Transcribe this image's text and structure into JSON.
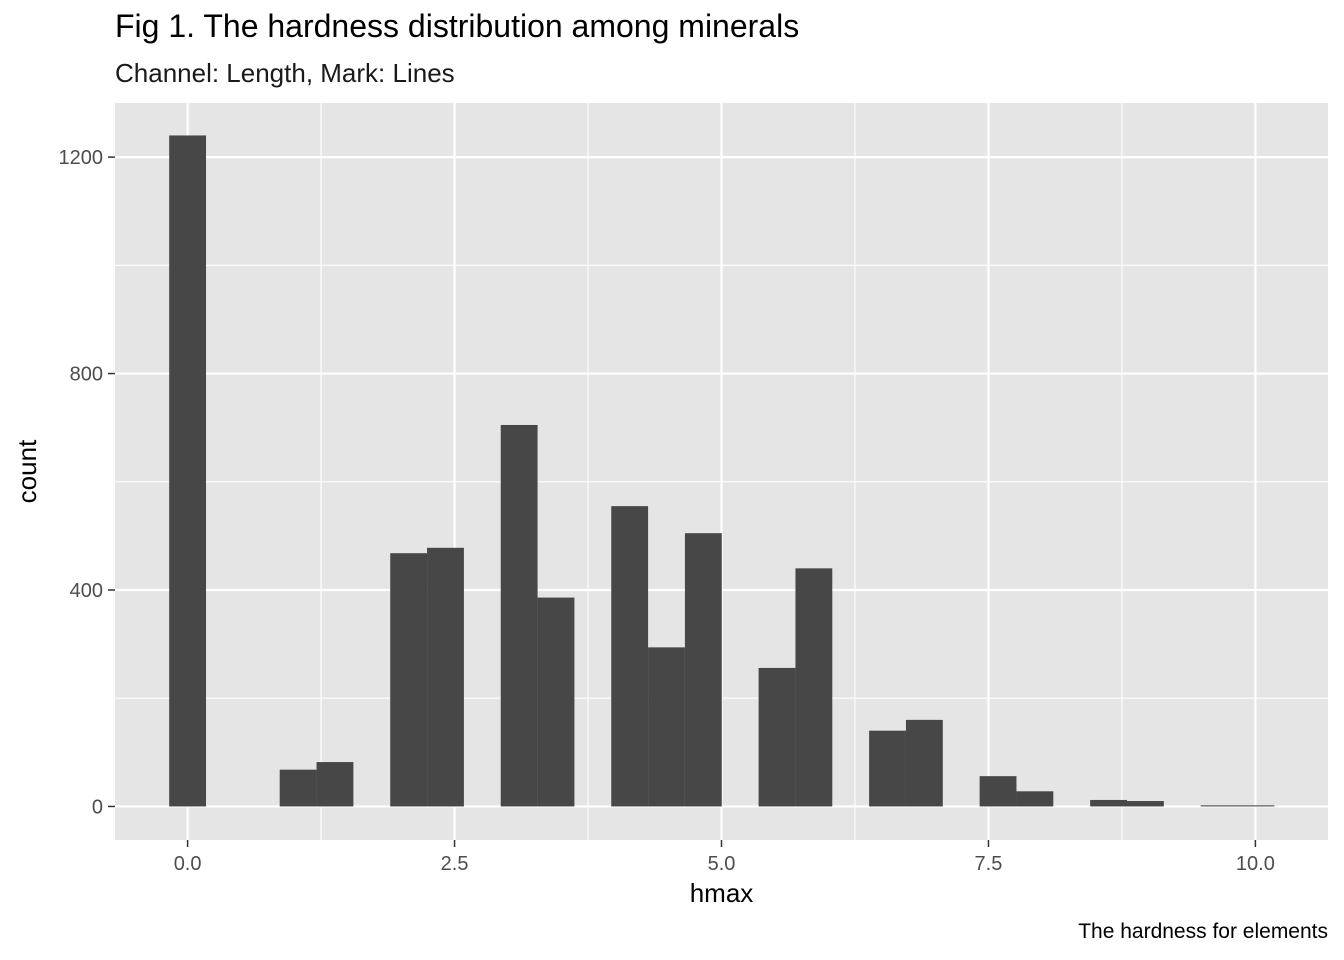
{
  "chart_data": {
    "type": "bar",
    "title": "Fig 1. The hardness distribution among minerals",
    "subtitle": "Channel: Length, Mark: Lines",
    "caption": "The hardness for elements",
    "xlabel": "hmax",
    "ylabel": "count",
    "xlim": [
      -0.68,
      10.68
    ],
    "ylim": [
      -62,
      1300
    ],
    "x_ticks": [
      0.0,
      2.5,
      5.0,
      7.5,
      10.0
    ],
    "x_tick_labels": [
      "0.0",
      "2.5",
      "5.0",
      "7.5",
      "10.0"
    ],
    "y_ticks": [
      0,
      400,
      800,
      1200
    ],
    "y_tick_labels": [
      "0",
      "400",
      "800",
      "1200"
    ],
    "bin_width": 0.345,
    "bins": [
      {
        "x": 0.0,
        "count": 1240
      },
      {
        "x": 0.345,
        "count": 0
      },
      {
        "x": 0.69,
        "count": 0
      },
      {
        "x": 1.035,
        "count": 68
      },
      {
        "x": 1.38,
        "count": 82
      },
      {
        "x": 1.725,
        "count": 0
      },
      {
        "x": 2.07,
        "count": 468
      },
      {
        "x": 2.415,
        "count": 478
      },
      {
        "x": 2.76,
        "count": 0
      },
      {
        "x": 3.105,
        "count": 705
      },
      {
        "x": 3.45,
        "count": 386
      },
      {
        "x": 3.795,
        "count": 0
      },
      {
        "x": 4.14,
        "count": 555
      },
      {
        "x": 4.485,
        "count": 294
      },
      {
        "x": 4.83,
        "count": 505
      },
      {
        "x": 5.175,
        "count": 0
      },
      {
        "x": 5.52,
        "count": 256
      },
      {
        "x": 5.865,
        "count": 440
      },
      {
        "x": 6.21,
        "count": 0
      },
      {
        "x": 6.555,
        "count": 140
      },
      {
        "x": 6.9,
        "count": 160
      },
      {
        "x": 7.245,
        "count": 0
      },
      {
        "x": 7.59,
        "count": 56
      },
      {
        "x": 7.935,
        "count": 28
      },
      {
        "x": 8.28,
        "count": 0
      },
      {
        "x": 8.625,
        "count": 12
      },
      {
        "x": 8.97,
        "count": 10
      },
      {
        "x": 9.315,
        "count": 0
      },
      {
        "x": 9.66,
        "count": 2
      },
      {
        "x": 10.005,
        "count": 2
      }
    ],
    "grid": true,
    "colors": {
      "bar": "#474747",
      "panel": "#e5e5e5",
      "grid": "#ffffff"
    }
  }
}
